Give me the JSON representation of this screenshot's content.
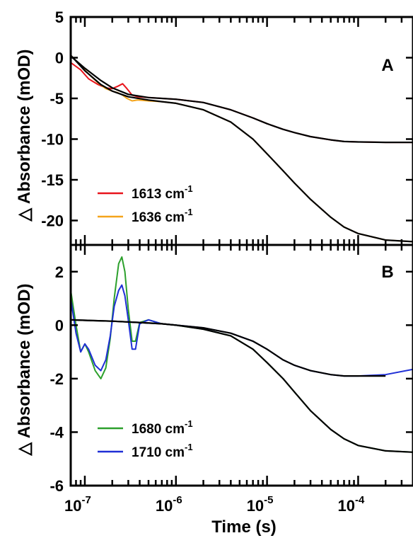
{
  "chart_data": [
    {
      "type": "line",
      "panel_label": "A",
      "xlabel": "Time (s)",
      "ylabel": "△ Absorbance (mOD)",
      "x_scale": "log",
      "xlim": [
        7e-08,
        0.0004
      ],
      "ylim": [
        -23,
        5
      ],
      "yticks": [
        5,
        0,
        -5,
        -10,
        -15,
        -20
      ],
      "legend_position": "bottom-left",
      "grid": false,
      "series": [
        {
          "name": "1613 cm",
          "name_superscript": "-1",
          "color": "#e8141c",
          "x": [
            7e-08,
            9e-08,
            1.1e-07,
            1.4e-07,
            1.7e-07,
            2e-07,
            2.3e-07,
            2.6e-07,
            2.9e-07,
            3.3e-07,
            3.8e-07,
            5e-07,
            7e-07,
            1e-06,
            2e-06,
            4e-06,
            7e-06,
            1e-05,
            1.5e-05,
            2e-05,
            3e-05,
            5e-05,
            7e-05,
            0.0001,
            0.0002,
            0.0004
          ],
          "y": [
            -0.6,
            -1.5,
            -2.6,
            -3.3,
            -3.7,
            -3.8,
            -3.5,
            -3.2,
            -3.8,
            -4.6,
            -4.8,
            -4.9,
            -5.0,
            -5.1,
            -5.5,
            -6.4,
            -7.4,
            -8.1,
            -8.8,
            -9.2,
            -9.7,
            -10.1,
            -10.3,
            -10.35,
            -10.4,
            -10.4
          ]
        },
        {
          "name": "1636 cm",
          "name_superscript": "-1",
          "color": "#f4a41b",
          "x": [
            7e-08,
            9e-08,
            1.1e-07,
            1.4e-07,
            1.7e-07,
            2e-07,
            2.3e-07,
            2.6e-07,
            2.9e-07,
            3.3e-07,
            3.8e-07,
            5e-07,
            7e-07,
            1e-06,
            2e-06,
            4e-06,
            7e-06,
            1e-05,
            1.5e-05,
            2e-05,
            3e-05,
            5e-05,
            7e-05,
            0.0001,
            0.0002,
            0.0004
          ],
          "y": [
            0.3,
            -1.0,
            -2.0,
            -3.1,
            -3.8,
            -4.1,
            -4.3,
            -4.6,
            -5.0,
            -5.3,
            -5.2,
            -5.3,
            -5.4,
            -5.6,
            -6.4,
            -7.9,
            -10.0,
            -11.8,
            -13.9,
            -15.4,
            -17.4,
            -19.6,
            -20.8,
            -21.6,
            -22.4,
            -22.6
          ]
        },
        {
          "name": "",
          "color": "#000000",
          "x": [
            7e-08,
            1e-07,
            1.5e-07,
            2e-07,
            3e-07,
            5e-07,
            7e-07,
            1e-06,
            2e-06,
            4e-06,
            7e-06,
            1e-05,
            1.5e-05,
            2e-05,
            3e-05,
            5e-05,
            7e-05,
            0.0001,
            0.0002,
            0.0004
          ],
          "y": [
            0.2,
            -1.3,
            -2.8,
            -3.7,
            -4.5,
            -4.9,
            -5.0,
            -5.1,
            -5.5,
            -6.4,
            -7.4,
            -8.1,
            -8.8,
            -9.2,
            -9.7,
            -10.1,
            -10.3,
            -10.35,
            -10.4,
            -10.4
          ]
        },
        {
          "name": "",
          "color": "#000000",
          "x": [
            7e-08,
            1e-07,
            1.5e-07,
            2e-07,
            3e-07,
            5e-07,
            7e-07,
            1e-06,
            2e-06,
            4e-06,
            7e-06,
            1e-05,
            1.5e-05,
            2e-05,
            3e-05,
            5e-05,
            7e-05,
            0.0001,
            0.0002,
            0.0004
          ],
          "y": [
            0.3,
            -1.6,
            -3.3,
            -4.1,
            -4.8,
            -5.2,
            -5.4,
            -5.6,
            -6.4,
            -7.9,
            -10.0,
            -11.8,
            -13.9,
            -15.4,
            -17.4,
            -19.6,
            -20.8,
            -21.6,
            -22.4,
            -22.6
          ]
        }
      ]
    },
    {
      "type": "line",
      "panel_label": "B",
      "xlabel": "Time (s)",
      "ylabel": "△ Absorbance (mOD)",
      "x_scale": "log",
      "xlim": [
        7e-08,
        0.0004
      ],
      "ylim": [
        -6,
        3
      ],
      "yticks": [
        2,
        0,
        -2,
        -4,
        -6
      ],
      "xticks": [
        "10",
        "10",
        "10",
        "10"
      ],
      "xtick_exponents": [
        "-7",
        "-6",
        "-5",
        "-4"
      ],
      "xtick_values": [
        1e-07,
        1e-06,
        1e-05,
        0.0001
      ],
      "legend_position": "bottom-left",
      "grid": false,
      "series": [
        {
          "name": "1680 cm",
          "name_superscript": "-1",
          "color": "#2ca02c",
          "x": [
            7e-08,
            8e-08,
            9e-08,
            1e-07,
            1.1e-07,
            1.3e-07,
            1.5e-07,
            1.7e-07,
            1.9e-07,
            2.1e-07,
            2.35e-07,
            2.55e-07,
            2.75e-07,
            3e-07,
            3.3e-07,
            3.6e-07,
            4e-07,
            5e-07,
            7e-07,
            1e-06,
            2e-06,
            4e-06,
            7e-06,
            1e-05,
            1.5e-05,
            2e-05,
            3e-05,
            5e-05,
            7e-05,
            0.0001,
            0.0002,
            0.0004
          ],
          "y": [
            1.3,
            0.0,
            -1.0,
            -0.7,
            -1.0,
            -1.7,
            -2.0,
            -1.6,
            -0.5,
            1.0,
            2.3,
            2.55,
            2.0,
            0.6,
            -0.6,
            -0.6,
            0.1,
            0.2,
            0.05,
            0.0,
            -0.15,
            -0.4,
            -0.9,
            -1.4,
            -2.0,
            -2.5,
            -3.2,
            -3.9,
            -4.25,
            -4.5,
            -4.7,
            -4.75
          ]
        },
        {
          "name": "1710 cm",
          "name_superscript": "-1",
          "color": "#1f2fd6",
          "x": [
            7e-08,
            8e-08,
            9e-08,
            1e-07,
            1.1e-07,
            1.3e-07,
            1.5e-07,
            1.7e-07,
            1.9e-07,
            2.1e-07,
            2.35e-07,
            2.55e-07,
            2.75e-07,
            3e-07,
            3.3e-07,
            3.6e-07,
            4e-07,
            5e-07,
            7e-07,
            1e-06,
            2e-06,
            4e-06,
            7e-06,
            1e-05,
            1.5e-05,
            2e-05,
            3e-05,
            5e-05,
            7e-05,
            0.0001,
            0.0002,
            0.0004
          ],
          "y": [
            1.0,
            -0.3,
            -1.0,
            -0.7,
            -0.9,
            -1.5,
            -1.7,
            -1.3,
            -0.4,
            0.7,
            1.3,
            1.5,
            1.1,
            0.2,
            -0.9,
            -0.9,
            0.05,
            0.2,
            0.05,
            0.0,
            -0.1,
            -0.3,
            -0.6,
            -0.9,
            -1.3,
            -1.5,
            -1.7,
            -1.85,
            -1.9,
            -1.9,
            -1.85,
            -1.65
          ]
        },
        {
          "name": "",
          "color": "#000000",
          "x": [
            7e-08,
            1e-07,
            2e-07,
            4e-07,
            7e-07,
            1e-06,
            2e-06,
            4e-06,
            7e-06,
            1e-05,
            1.5e-05,
            2e-05,
            3e-05,
            5e-05,
            7e-05,
            0.0001,
            0.0002,
            0.0004
          ],
          "y": [
            0.2,
            0.18,
            0.15,
            0.1,
            0.05,
            0.0,
            -0.15,
            -0.4,
            -0.9,
            -1.4,
            -2.0,
            -2.5,
            -3.2,
            -3.9,
            -4.25,
            -4.5,
            -4.7,
            -4.75
          ]
        },
        {
          "name": "",
          "color": "#000000",
          "x": [
            7e-08,
            1e-07,
            2e-07,
            4e-07,
            7e-07,
            1e-06,
            2e-06,
            4e-06,
            7e-06,
            1e-05,
            1.5e-05,
            2e-05,
            3e-05,
            5e-05,
            7e-05,
            0.0001,
            0.0002
          ],
          "y": [
            0.2,
            0.18,
            0.15,
            0.1,
            0.05,
            0.0,
            -0.1,
            -0.3,
            -0.6,
            -0.9,
            -1.3,
            -1.5,
            -1.7,
            -1.85,
            -1.9,
            -1.9,
            -1.9
          ]
        }
      ]
    }
  ]
}
